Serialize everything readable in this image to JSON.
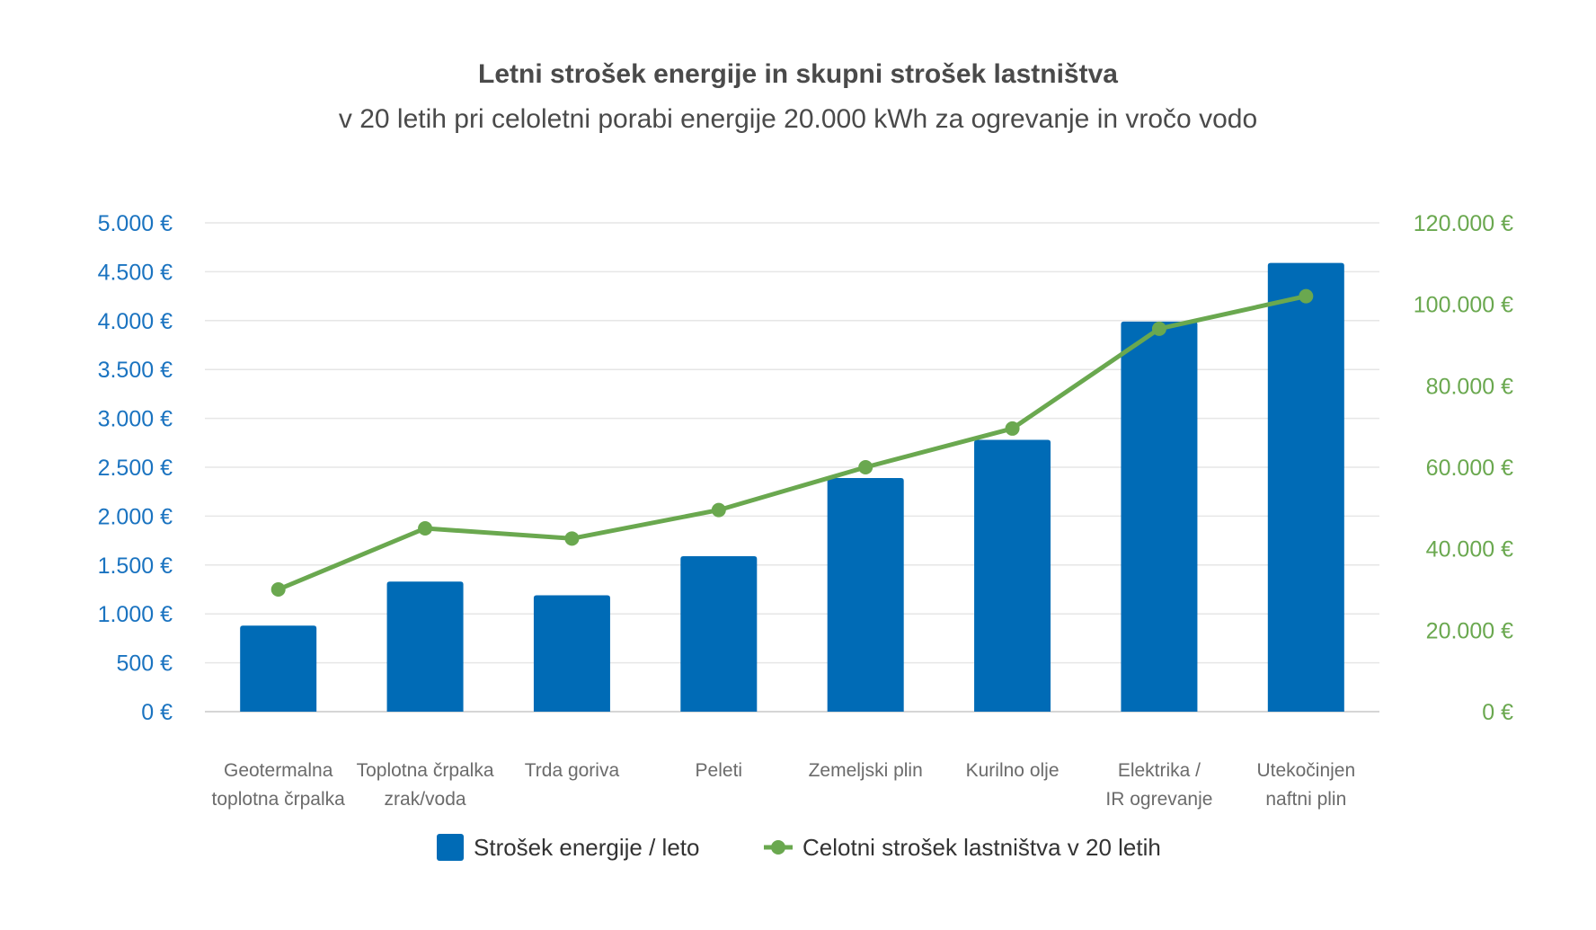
{
  "chart_data": {
    "type": "bar",
    "title": "Letni strošek energije in skupni strošek lastništva",
    "subtitle": "v 20 letih pri celoletni porabi energije 20.000 kWh za ogrevanje in vročo vodo",
    "categories": [
      [
        "Geotermalna",
        "toplotna črpalka"
      ],
      [
        "Toplotna črpalka",
        "zrak/voda"
      ],
      [
        "Trda goriva"
      ],
      [
        "Peleti"
      ],
      [
        "Zemeljski plin"
      ],
      [
        "Kurilno olje"
      ],
      [
        "Elektrika /",
        "IR ogrevanje"
      ],
      [
        "Utekočinjen",
        "naftni plin"
      ]
    ],
    "series": [
      {
        "name": "Strošek energije / leto",
        "type": "bar",
        "axis": "left",
        "color": "#006bb6",
        "values": [
          880,
          1330,
          1190,
          1590,
          2390,
          2780,
          3990,
          4590
        ]
      },
      {
        "name": "Celotni strošek lastništva v 20 letih",
        "type": "line",
        "axis": "right",
        "color": "#6aa84f",
        "values": [
          30000,
          45000,
          42500,
          49500,
          60000,
          69500,
          94000,
          102000
        ]
      }
    ],
    "y_left": {
      "range": [
        0,
        5000
      ],
      "ticks": [
        "0 €",
        "500 €",
        "1.000 €",
        "1.500 €",
        "2.000 €",
        "2.500 €",
        "3.000 €",
        "3.500 €",
        "4.000 €",
        "4.500 €",
        "5.000 €"
      ],
      "tick_values": [
        0,
        500,
        1000,
        1500,
        2000,
        2500,
        3000,
        3500,
        4000,
        4500,
        5000
      ],
      "color": "#1a73c0"
    },
    "y_right": {
      "range": [
        0,
        120000
      ],
      "ticks": [
        "0 €",
        "20.000 €",
        "40.000 €",
        "60.000 €",
        "80.000 €",
        "100.000 €",
        "120.000 €"
      ],
      "tick_values": [
        0,
        20000,
        40000,
        60000,
        80000,
        100000,
        120000
      ],
      "color": "#6aa84f"
    },
    "grid": true,
    "legend_position": "bottom-center"
  }
}
